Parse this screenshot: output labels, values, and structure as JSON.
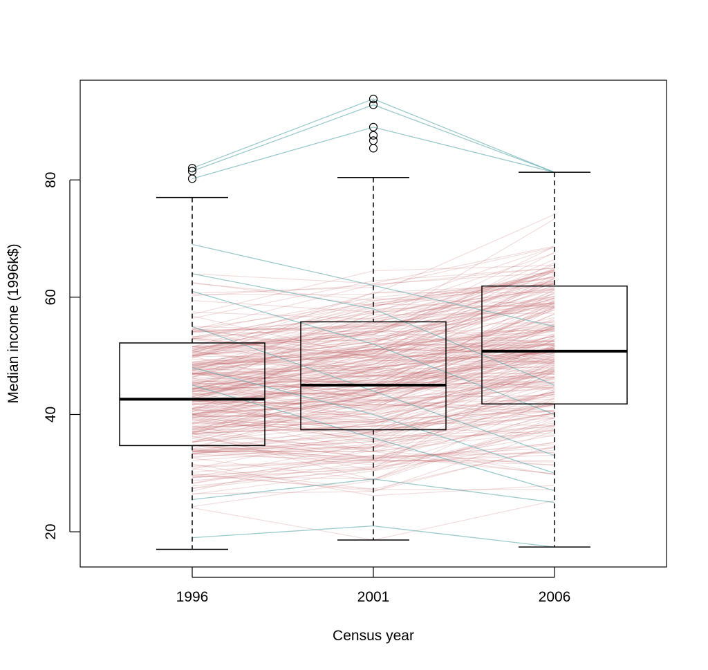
{
  "chart_data": {
    "type": "box",
    "xlabel": "Census year",
    "ylabel": "Median income (1996k$)",
    "categories": [
      "1996",
      "2001",
      "2006"
    ],
    "y_ticks": [
      20,
      40,
      60,
      80
    ],
    "ylim": [
      14,
      97
    ],
    "grid": false,
    "boxes": [
      {
        "category": "1996",
        "whisker_low": 17.0,
        "q1": 34.7,
        "median": 42.6,
        "q3": 52.2,
        "whisker_high": 77.0,
        "outliers": [
          82.0,
          81.5,
          80.2
        ]
      },
      {
        "category": "2001",
        "whisker_low": 18.6,
        "q1": 37.4,
        "median": 45.0,
        "q3": 55.8,
        "whisker_high": 80.4,
        "outliers": [
          93.8,
          92.8,
          89.0,
          87.6,
          86.7,
          85.4
        ]
      },
      {
        "category": "2006",
        "whisker_low": 17.4,
        "q1": 41.8,
        "median": 50.8,
        "q3": 61.9,
        "whisker_high": 81.3,
        "outliers": []
      }
    ],
    "trajectory_groups": [
      {
        "name": "increasing",
        "color": "#c0636b"
      },
      {
        "name": "decreasing",
        "color": "#5aa6a8"
      }
    ],
    "highlighted_trajectories": [
      [
        82.0,
        93.8,
        81.3
      ],
      [
        81.5,
        92.8,
        81.3
      ],
      [
        80.2,
        89.0,
        81.3
      ],
      [
        19.0,
        21.0,
        17.4
      ],
      [
        69.0,
        62.0,
        55.0
      ],
      [
        64.0,
        58.0,
        45.0
      ],
      [
        61.0,
        52.0,
        40.0
      ],
      [
        55.0,
        44.0,
        33.0
      ],
      [
        48.0,
        40.0,
        30.0
      ],
      [
        45.0,
        36.0,
        27.0
      ],
      [
        25.5,
        29.0,
        25.0
      ]
    ]
  }
}
